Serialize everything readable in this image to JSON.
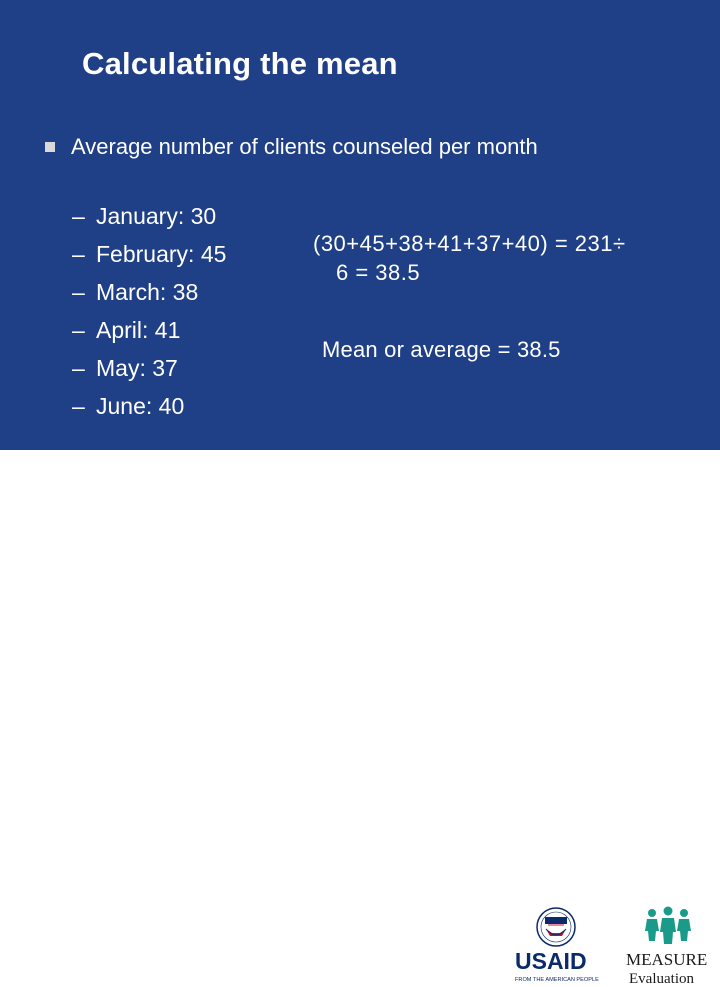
{
  "slide": {
    "title": "Calculating the mean",
    "bullet": "Average number of clients counseled per month",
    "months": [
      {
        "dash": "–",
        "text": "January: 30"
      },
      {
        "dash": "–",
        "text": "February: 45"
      },
      {
        "dash": "–",
        "text": "March: 38"
      },
      {
        "dash": "–",
        "text": "April: 41"
      },
      {
        "dash": "–",
        "text": "May: 37"
      },
      {
        "dash": "–",
        "text": "June: 40"
      }
    ],
    "calculation_line1": "(30+45+38+41+37+40) = 231÷",
    "calculation_line2": "6 = 38.5",
    "mean": "Mean or average = 38.5"
  },
  "logos": {
    "usaid_wordmark": "USAID",
    "usaid_tagline": "FROM THE AMERICAN PEOPLE",
    "measure_wordmark": "MEASURE",
    "measure_sub": "Evaluation"
  },
  "colors": {
    "background": "#1f3f86",
    "text": "#ffffff",
    "bullet": "#d9d9d9",
    "usaid_blue": "#0b2a6b",
    "usaid_red": "#c8102e",
    "measure_teal": "#1a9b8a"
  }
}
